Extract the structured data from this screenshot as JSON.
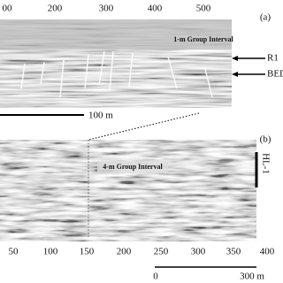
{
  "panel_a": {
    "top_ticks": [
      "00",
      "200",
      "300",
      "400",
      "500"
    ],
    "tag": "(a)",
    "caption": "1-m Group Interval",
    "reflectors": [
      "R1",
      "BED"
    ],
    "scale_label": "100 m"
  },
  "panel_b": {
    "tag": "(b)",
    "caption": "4-m Group Interval",
    "well": "HL-1",
    "bottom_ticks": [
      "50",
      "100",
      "150",
      "200",
      "250",
      "300",
      "350",
      "400"
    ],
    "scale_start": "0",
    "scale_label": "300 m"
  }
}
